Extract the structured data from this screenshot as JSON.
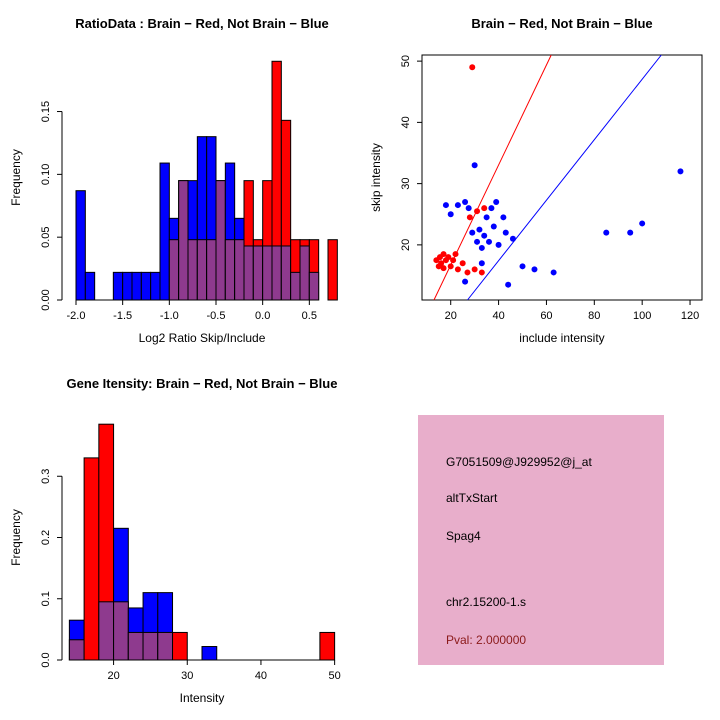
{
  "figure": {
    "background": "#FFFFFF"
  },
  "colors": {
    "red": "#FF0000",
    "blue": "#0000FF",
    "overlap": "#8E3A8E",
    "axis": "#000000",
    "info_box_bg": "#E8AECB",
    "pval_red": "#8B1A1A"
  },
  "chart_data": [
    {
      "type": "bar",
      "title": "RatioData : Brain − Red, Not Brain − Blue",
      "xlabel": "Log2 Ratio Skip/Include",
      "ylabel": "Frequency",
      "grid": false,
      "legend": "none",
      "bin_width": 0.1,
      "xlim": [
        -2.15,
        0.85
      ],
      "ylim": [
        0,
        0.195
      ],
      "xticks": [
        -2.0,
        -1.5,
        -1.0,
        -0.5,
        0.0,
        0.5
      ],
      "xtick_labels": [
        "-2.0",
        "-1.5",
        "-1.0",
        "-0.5",
        "0.0",
        "0.5"
      ],
      "yticks": [
        0.0,
        0.05,
        0.1,
        0.15
      ],
      "ytick_labels": [
        "0.00",
        "0.05",
        "0.10",
        "0.15"
      ],
      "series": [
        {
          "name": "Not Brain",
          "color": "blue",
          "bins": [
            [
              -2.0,
              0.087
            ],
            [
              -1.9,
              0.022
            ],
            [
              -1.6,
              0.022
            ],
            [
              -1.5,
              0.022
            ],
            [
              -1.4,
              0.022
            ],
            [
              -1.3,
              0.022
            ],
            [
              -1.2,
              0.022
            ],
            [
              -1.1,
              0.109
            ],
            [
              -1.0,
              0.065
            ],
            [
              -0.9,
              0.095
            ],
            [
              -0.8,
              0.095
            ],
            [
              -0.7,
              0.13
            ],
            [
              -0.6,
              0.13
            ],
            [
              -0.5,
              0.095
            ],
            [
              -0.4,
              0.109
            ],
            [
              -0.3,
              0.065
            ],
            [
              -0.2,
              0.043
            ],
            [
              -0.1,
              0.043
            ],
            [
              0.0,
              0.043
            ],
            [
              0.1,
              0.043
            ],
            [
              0.2,
              0.043
            ],
            [
              0.3,
              0.022
            ],
            [
              0.4,
              0.043
            ],
            [
              0.5,
              0.022
            ]
          ]
        },
        {
          "name": "Brain",
          "color": "red",
          "bins": [
            [
              -1.0,
              0.048
            ],
            [
              -0.9,
              0.095
            ],
            [
              -0.8,
              0.048
            ],
            [
              -0.7,
              0.048
            ],
            [
              -0.6,
              0.048
            ],
            [
              -0.5,
              0.095
            ],
            [
              -0.4,
              0.048
            ],
            [
              -0.3,
              0.048
            ],
            [
              -0.2,
              0.095
            ],
            [
              -0.1,
              0.048
            ],
            [
              0.0,
              0.095
            ],
            [
              0.1,
              0.19
            ],
            [
              0.2,
              0.143
            ],
            [
              0.3,
              0.048
            ],
            [
              0.4,
              0.048
            ],
            [
              0.5,
              0.048
            ],
            [
              0.7,
              0.048
            ]
          ]
        }
      ]
    },
    {
      "type": "scatter",
      "title": "Brain − Red, Not Brain − Blue",
      "xlabel": "include intensity",
      "ylabel": "skip intensity",
      "grid": false,
      "legend": "none",
      "xlim": [
        8,
        125
      ],
      "ylim": [
        11,
        51
      ],
      "xticks": [
        20,
        40,
        60,
        80,
        100,
        120
      ],
      "xtick_labels": [
        "20",
        "40",
        "60",
        "80",
        "100",
        "120"
      ],
      "yticks": [
        20,
        30,
        40,
        50
      ],
      "ytick_labels": [
        "20",
        "30",
        "40",
        "50"
      ],
      "series": [
        {
          "name": "Brain",
          "color": "red",
          "points": [
            [
              14,
              17.5
            ],
            [
              15,
              16.5
            ],
            [
              15.5,
              18
            ],
            [
              16,
              17
            ],
            [
              17,
              18.5
            ],
            [
              17,
              16.2
            ],
            [
              18,
              17.5
            ],
            [
              19,
              18
            ],
            [
              20,
              16.5
            ],
            [
              21,
              17.5
            ],
            [
              22,
              18.5
            ],
            [
              23,
              16
            ],
            [
              25,
              17
            ],
            [
              27,
              15.5
            ],
            [
              30,
              16
            ],
            [
              33,
              15.5
            ],
            [
              28,
              24.5
            ],
            [
              31,
              25.5
            ],
            [
              34,
              26
            ],
            [
              29,
              49
            ]
          ]
        },
        {
          "name": "Not Brain",
          "color": "blue",
          "points": [
            [
              18,
              26.5
            ],
            [
              20,
              25
            ],
            [
              23,
              26.5
            ],
            [
              26,
              27
            ],
            [
              27.5,
              26
            ],
            [
              29,
              22
            ],
            [
              30,
              33
            ],
            [
              31,
              20.5
            ],
            [
              32,
              22.5
            ],
            [
              33,
              19.5
            ],
            [
              34,
              21.5
            ],
            [
              35,
              24.5
            ],
            [
              36,
              20.5
            ],
            [
              37,
              26
            ],
            [
              38,
              23
            ],
            [
              39,
              27
            ],
            [
              40,
              20
            ],
            [
              42,
              24.5
            ],
            [
              43,
              22
            ],
            [
              44,
              13.5
            ],
            [
              46,
              21
            ],
            [
              50,
              16.5
            ],
            [
              55,
              16
            ],
            [
              63,
              15.5
            ],
            [
              26,
              14
            ],
            [
              33,
              17
            ],
            [
              85,
              22
            ],
            [
              95,
              22
            ],
            [
              100,
              23.5
            ],
            [
              116,
              32
            ]
          ]
        }
      ],
      "lines": [
        {
          "name": "brain-fit-line",
          "color": "red",
          "from": [
            13,
            11
          ],
          "to": [
            62,
            51
          ]
        },
        {
          "name": "notbrain-fit-line",
          "color": "blue",
          "from": [
            27,
            11
          ],
          "to": [
            108,
            51
          ]
        }
      ]
    },
    {
      "type": "bar",
      "title": "Gene Itensity: Brain − Red, Not Brain − Blue",
      "xlabel": "Intensity",
      "ylabel": "Frequency",
      "grid": false,
      "legend": "none",
      "bin_width": 2,
      "xlim": [
        13,
        51
      ],
      "ylim": [
        0,
        0.4
      ],
      "xticks": [
        20,
        30,
        40,
        50
      ],
      "xtick_labels": [
        "20",
        "30",
        "40",
        "50"
      ],
      "yticks": [
        0.0,
        0.1,
        0.2,
        0.3
      ],
      "ytick_labels": [
        "0.0",
        "0.1",
        "0.2",
        "0.3"
      ],
      "series": [
        {
          "name": "Not Brain",
          "color": "blue",
          "bins": [
            [
              14,
              0.065
            ],
            [
              18,
              0.095
            ],
            [
              20,
              0.215
            ],
            [
              22,
              0.085
            ],
            [
              24,
              0.11
            ],
            [
              26,
              0.11
            ],
            [
              32,
              0.022
            ]
          ]
        },
        {
          "name": "Brain",
          "color": "red",
          "bins": [
            [
              14,
              0.033
            ],
            [
              16,
              0.33
            ],
            [
              18,
              0.385
            ],
            [
              20,
              0.095
            ],
            [
              22,
              0.045
            ],
            [
              24,
              0.045
            ],
            [
              26,
              0.045
            ],
            [
              28,
              0.045
            ],
            [
              48,
              0.045
            ]
          ]
        }
      ]
    }
  ],
  "info_box": {
    "lines": [
      {
        "name": "probe-id",
        "text": "G7051509@J929952@j_at",
        "color": "#000000"
      },
      {
        "name": "event-type",
        "text": "altTxStart",
        "color": "#000000"
      },
      {
        "name": "gene-name",
        "text": "Spag4",
        "color": "#000000"
      },
      {
        "name": "location",
        "text": "chr2.15200-1.s",
        "color": "#000000"
      },
      {
        "name": "pval",
        "text": "Pval: 2.000000",
        "color": "#8B1A1A"
      }
    ]
  }
}
